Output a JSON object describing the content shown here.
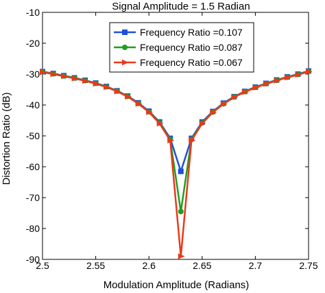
{
  "chart_data": {
    "type": "line",
    "title": "Signal Amplitude = 1.5 Radian",
    "xlabel": "Modulation Amplitude (Radians)",
    "ylabel": "Distortion Ratio (dB)",
    "xlim": [
      2.5,
      2.75
    ],
    "ylim": [
      -90,
      -10
    ],
    "xticks": [
      2.5,
      2.55,
      2.6,
      2.65,
      2.7,
      2.75
    ],
    "xtick_labels": [
      "2.5",
      "2.55",
      "2.6",
      "2.65",
      "2.7",
      "2.75"
    ],
    "yticks": [
      -10,
      -20,
      -30,
      -40,
      -50,
      -60,
      -70,
      -80,
      -90
    ],
    "ytick_labels": [
      "-10",
      "-20",
      "-30",
      "-40",
      "-50",
      "-60",
      "-70",
      "-80",
      "-90"
    ],
    "grid": false,
    "legend_position": "top-right",
    "x": [
      2.5,
      2.51,
      2.52,
      2.53,
      2.54,
      2.55,
      2.56,
      2.57,
      2.58,
      2.59,
      2.6,
      2.61,
      2.62,
      2.63,
      2.64,
      2.65,
      2.66,
      2.67,
      2.68,
      2.69,
      2.7,
      2.71,
      2.72,
      2.73,
      2.74,
      2.75
    ],
    "series": [
      {
        "name": "Frequency Ratio =0.107",
        "color": "#1f4fd8",
        "marker": "square",
        "values": [
          -29.2,
          -29.8,
          -30.5,
          -31.2,
          -32.0,
          -32.9,
          -34.0,
          -35.4,
          -37.1,
          -39.3,
          -42.0,
          -45.5,
          -50.8,
          -61.5,
          -50.8,
          -45.5,
          -42.1,
          -39.4,
          -37.3,
          -35.6,
          -34.2,
          -33.0,
          -31.9,
          -30.9,
          -30.0,
          -29.0
        ]
      },
      {
        "name": "Frequency Ratio =0.087",
        "color": "#1f9e1f",
        "marker": "circle",
        "values": [
          -29.3,
          -29.9,
          -30.6,
          -31.3,
          -32.1,
          -33.0,
          -34.1,
          -35.5,
          -37.2,
          -39.5,
          -42.2,
          -45.8,
          -51.2,
          -74.5,
          -51.2,
          -45.8,
          -42.3,
          -39.6,
          -37.4,
          -35.7,
          -34.3,
          -33.1,
          -32.0,
          -31.0,
          -30.1,
          -29.1
        ]
      },
      {
        "name": "Frequency Ratio =0.067",
        "color": "#e83a1a",
        "marker": "triangle-right",
        "values": [
          -29.4,
          -30.0,
          -30.7,
          -31.4,
          -32.2,
          -33.1,
          -34.2,
          -35.6,
          -37.3,
          -39.6,
          -42.3,
          -46.0,
          -51.5,
          -89.0,
          -51.5,
          -46.0,
          -42.4,
          -39.7,
          -37.5,
          -35.8,
          -34.4,
          -33.2,
          -32.1,
          -31.1,
          -30.2,
          -29.2
        ]
      }
    ]
  }
}
